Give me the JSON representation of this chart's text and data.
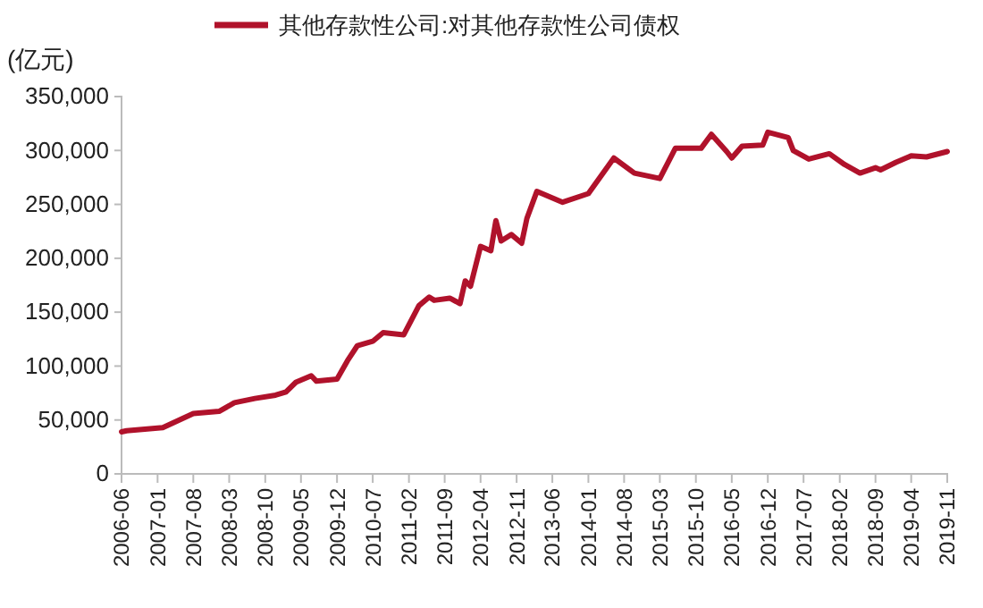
{
  "chart_data": {
    "type": "line",
    "ylabel": "(亿元)",
    "legend": "top",
    "grid": false,
    "line_style": "solid",
    "marker": "none",
    "x": [
      "2006-06",
      "2006-07",
      "2007-02",
      "2007-08",
      "2008-01",
      "2008-04",
      "2008-08",
      "2008-12",
      "2009-02",
      "2009-04",
      "2009-07",
      "2009-08",
      "2009-12",
      "2010-02",
      "2010-04",
      "2010-07",
      "2010-09",
      "2011-01",
      "2011-04",
      "2011-06",
      "2011-07",
      "2011-10",
      "2011-12",
      "2012-01",
      "2012-02",
      "2012-04",
      "2012-06",
      "2012-07",
      "2012-08",
      "2012-10",
      "2012-12",
      "2013-01",
      "2013-03",
      "2013-08",
      "2014-01",
      "2014-06",
      "2014-10",
      "2015-03",
      "2015-06",
      "2015-11",
      "2016-01",
      "2016-04",
      "2016-05",
      "2016-07",
      "2016-11",
      "2016-12",
      "2017-04",
      "2017-05",
      "2017-08",
      "2017-12",
      "2018-03",
      "2018-06",
      "2018-09",
      "2018-10",
      "2019-01",
      "2019-04",
      "2019-07",
      "2019-11"
    ],
    "series": [
      {
        "name": "其他存款性公司:对其他存款性公司债权",
        "color": "#b0122b",
        "values": [
          39000,
          40000,
          43000,
          56000,
          58000,
          66000,
          70000,
          73000,
          76000,
          85000,
          91000,
          86000,
          88000,
          105000,
          119000,
          123000,
          131000,
          129000,
          156000,
          164000,
          161000,
          163000,
          158000,
          179000,
          174000,
          211000,
          207000,
          235000,
          216000,
          222000,
          214000,
          237000,
          262000,
          252000,
          260000,
          293000,
          279000,
          274000,
          302000,
          302000,
          315000,
          299000,
          293000,
          304000,
          305000,
          317000,
          312000,
          300000,
          292000,
          297000,
          287000,
          279000,
          284000,
          282000,
          289000,
          295000,
          294000,
          299000
        ]
      }
    ],
    "xlim": [
      "2006-06",
      "2019-11"
    ],
    "xticks": [
      "2006-06",
      "2007-01",
      "2007-08",
      "2008-03",
      "2008-10",
      "2009-05",
      "2009-12",
      "2010-07",
      "2011-02",
      "2011-09",
      "2012-04",
      "2012-11",
      "2013-06",
      "2014-01",
      "2014-08",
      "2015-03",
      "2015-10",
      "2016-05",
      "2016-12",
      "2017-07",
      "2018-02",
      "2018-09",
      "2019-04",
      "2019-11"
    ],
    "ylim": [
      0,
      350000
    ],
    "yticks": [
      0,
      {
        "value": 50000,
        "label": "50,000"
      },
      {
        "value": 100000,
        "label": "100,000"
      },
      {
        "value": 150000,
        "label": "150,000"
      },
      {
        "value": 200000,
        "label": "200,000"
      },
      {
        "value": 250000,
        "label": "250,000"
      },
      {
        "value": 300000,
        "label": "300,000"
      },
      {
        "value": 350000,
        "label": "350,000"
      }
    ]
  }
}
